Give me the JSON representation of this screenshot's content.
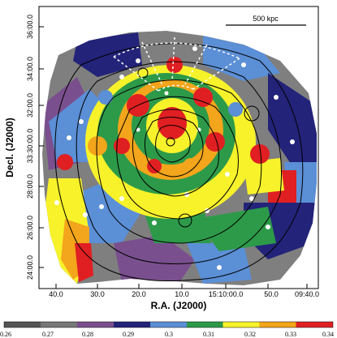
{
  "figure": {
    "scale_bar_label": "500 kpc",
    "xaxis_label": "R.A. (J2000)",
    "yaxis_label": "Decl. (J2000)",
    "xticks": [
      "40.0",
      "30.0",
      "20.0",
      "10.0",
      "15:10:00.0",
      "50.0",
      "09:40.0"
    ],
    "yticks": [
      "36:00.0",
      "34:00.0",
      "32:00.0",
      "33:30:00.0",
      "28:00.0",
      "26:00.0",
      "24:00.0"
    ],
    "colorbar_ticks": [
      "0.26",
      "0.27",
      "0.28",
      "0.29",
      "0.3",
      "0.31",
      "0.32",
      "0.33",
      "0.34"
    ],
    "colorbar_colors": [
      "#555555",
      "#777777",
      "#7a4f8e",
      "#23237a",
      "#5b8fd6",
      "#2d9a49",
      "#f7f22a",
      "#f3a51b",
      "#e01f22"
    ],
    "map_colors": {
      "background": "#ffffff",
      "gray": "#7f7f7f",
      "purple": "#7a4f8e",
      "navy": "#23237a",
      "blue": "#5b8fd6",
      "green": "#2d9a49",
      "yellow": "#f7f22a",
      "orange": "#f3a51b",
      "red": "#e01f22"
    }
  }
}
